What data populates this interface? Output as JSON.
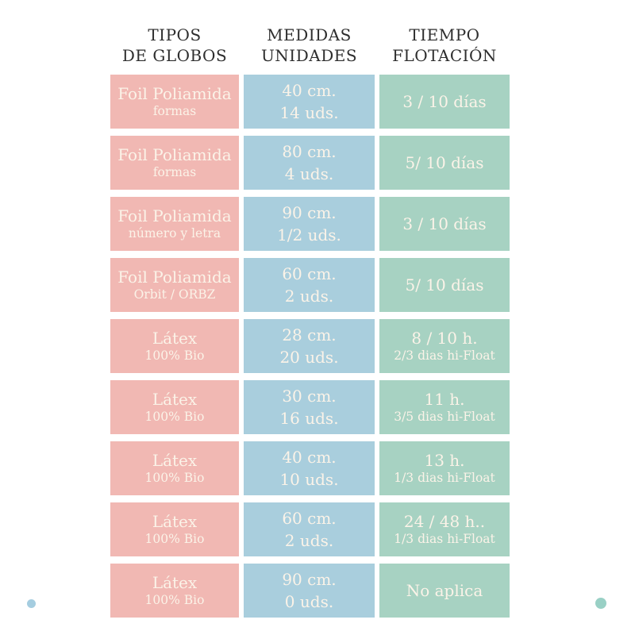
{
  "colors": {
    "pink": "#f1b8b3",
    "blue": "#a9cedd",
    "green": "#a7d2c2",
    "header_text": "#2e2e2e",
    "cell_text": "#fbf3e8",
    "dot_left": "#a5cde0",
    "dot_right": "#99d0c5"
  },
  "headers": [
    {
      "line1": "TIPOS",
      "line2": "DE GLOBOS"
    },
    {
      "line1": "MEDIDAS",
      "line2": "UNIDADES"
    },
    {
      "line1": "TIEMPO",
      "line2": "FLOTACIÓN"
    }
  ],
  "rows": [
    {
      "tipo": {
        "main": "Foil Poliamida",
        "sub": "formas"
      },
      "medida": {
        "size": "40 cm.",
        "units": "14 uds."
      },
      "tiempo": {
        "main": "3 / 10 días",
        "sub": ""
      }
    },
    {
      "tipo": {
        "main": "Foil Poliamida",
        "sub": "formas"
      },
      "medida": {
        "size": "80 cm.",
        "units": "4 uds."
      },
      "tiempo": {
        "main": "5/ 10 días",
        "sub": ""
      }
    },
    {
      "tipo": {
        "main": "Foil Poliamida",
        "sub": "número y letra"
      },
      "medida": {
        "size": "90 cm.",
        "units": "1/2 uds."
      },
      "tiempo": {
        "main": "3 / 10 días",
        "sub": ""
      }
    },
    {
      "tipo": {
        "main": "Foil Poliamida",
        "sub": "Orbit / ORBZ"
      },
      "medida": {
        "size": "60 cm.",
        "units": "2 uds."
      },
      "tiempo": {
        "main": "5/ 10 días",
        "sub": ""
      }
    },
    {
      "tipo": {
        "main": "Látex",
        "sub": "100% Bio"
      },
      "medida": {
        "size": "28 cm.",
        "units": "20 uds."
      },
      "tiempo": {
        "main": "8 / 10 h.",
        "sub": "2/3 dias hi-Float"
      }
    },
    {
      "tipo": {
        "main": "Látex",
        "sub": "100% Bio"
      },
      "medida": {
        "size": "30 cm.",
        "units": "16 uds."
      },
      "tiempo": {
        "main": "11 h.",
        "sub": "3/5 dias hi-Float"
      }
    },
    {
      "tipo": {
        "main": "Látex",
        "sub": "100% Bio"
      },
      "medida": {
        "size": "40 cm.",
        "units": "10 uds."
      },
      "tiempo": {
        "main": "13 h.",
        "sub": "1/3 dias hi-Float"
      }
    },
    {
      "tipo": {
        "main": "Látex",
        "sub": "100% Bio"
      },
      "medida": {
        "size": "60 cm.",
        "units": "2 uds."
      },
      "tiempo": {
        "main": "24 / 48 h..",
        "sub": "1/3 dias hi-Float"
      }
    },
    {
      "tipo": {
        "main": "Látex",
        "sub": "100% Bio"
      },
      "medida": {
        "size": "90 cm.",
        "units": "0 uds."
      },
      "tiempo": {
        "main": "No aplica",
        "sub": ""
      }
    }
  ],
  "chart_data": {
    "type": "table",
    "columns": [
      "TIPOS DE GLOBOS",
      "MEDIDAS UNIDADES",
      "TIEMPO FLOTACIÓN"
    ],
    "rows": [
      [
        "Foil Poliamida formas",
        "40 cm. 14 uds.",
        "3 / 10 días"
      ],
      [
        "Foil Poliamida formas",
        "80 cm. 4 uds.",
        "5/ 10 días"
      ],
      [
        "Foil Poliamida número y letra",
        "90 cm. 1/2 uds.",
        "3 / 10 días"
      ],
      [
        "Foil Poliamida Orbit / ORBZ",
        "60 cm. 2 uds.",
        "5/ 10 días"
      ],
      [
        "Látex 100% Bio",
        "28 cm. 20 uds.",
        "8 / 10 h. 2/3 dias hi-Float"
      ],
      [
        "Látex 100% Bio",
        "30 cm. 16 uds.",
        "11 h. 3/5 dias hi-Float"
      ],
      [
        "Látex 100% Bio",
        "40 cm. 10 uds.",
        "13 h. 1/3 dias hi-Float"
      ],
      [
        "Látex 100% Bio",
        "60 cm. 2 uds.",
        "24 / 48 h.. 1/3 dias hi-Float"
      ],
      [
        "Látex 100% Bio",
        "90 cm. 0 uds.",
        "No aplica"
      ]
    ],
    "layout": {
      "grid": false,
      "cell_colors_by_column": [
        "#f1b8b3",
        "#a9cedd",
        "#a7d2c2"
      ]
    }
  }
}
